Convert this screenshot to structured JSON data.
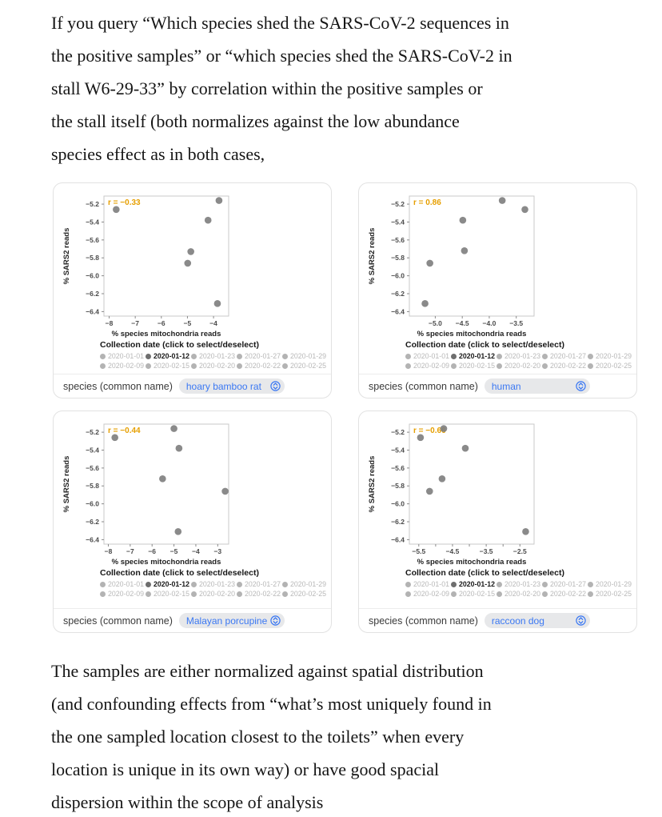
{
  "page": {
    "intro_lines": [
      "If you query “Which species shed the SARS-CoV-2 sequences in",
      "the positive samples” or “which species shed the SARS-CoV-2 in",
      "stall W6-29-33” by correlation within the positive samples or",
      "the stall itself (both normalizes against the low abundance",
      "species effect as in both cases,"
    ],
    "outro_lines": [
      "The samples are either normalized against spatial distribution",
      "(and confounding effects from “what’s most uniquely found in",
      "the one sampled location closest to the toilets” when every",
      "location is unique in its own way) or have good spacial",
      "dispersion within the scope of analysis"
    ]
  },
  "panel_shared": {
    "legend_title": "Collection date (click to select/deselect)",
    "dates": [
      "2020-01-01",
      "2020-01-12",
      "2020-01-23",
      "2020-01-27",
      "2020-01-29",
      "2020-02-09",
      "2020-02-15",
      "2020-02-20",
      "2020-02-22",
      "2020-02-25"
    ],
    "selected_date": "2020-01-12",
    "species_label": "species (common name)",
    "xlabel": "% species mitochondria reads",
    "ylabel": "% SARS2 reads",
    "y_tick_values": [
      -5.2,
      -5.4,
      -5.6,
      -5.8,
      -6.0,
      -6.2,
      -6.4
    ],
    "y_tick_labels": [
      "−5.2",
      "−5.4",
      "−5.6",
      "−5.8",
      "−6.0",
      "−6.2",
      "−6.4"
    ],
    "ylim": [
      -6.45,
      -5.11
    ],
    "colors": {
      "r_annotation": "#E69F00",
      "point": "#7d7d7d",
      "spine": "#c9c9c9",
      "species_text": "#3b78f3",
      "pill_bg": "#e7e8ea",
      "selected_date_text": "#1a1a1a",
      "unselected_date_text": "#b8b8b8"
    }
  },
  "chart_data": [
    {
      "type": "scatter",
      "species": "hoary bamboo rat",
      "r_label": "r = −0.33",
      "xlim": [
        -8.2,
        -3.42
      ],
      "x_tick_values": [
        -8,
        -7,
        -6,
        -5,
        -4
      ],
      "x_tick_labels": [
        "−8",
        "−7",
        "−6",
        "−5",
        "−4"
      ],
      "minor_x_ticks": [],
      "points": [
        [
          -7.73,
          -5.26
        ],
        [
          -3.79,
          -5.16
        ],
        [
          -4.21,
          -5.38
        ],
        [
          -4.87,
          -5.73
        ],
        [
          -4.99,
          -5.86
        ],
        [
          -3.85,
          -6.31
        ]
      ]
    },
    {
      "type": "scatter",
      "species": "human",
      "r_label": "r = 0.86",
      "xlim": [
        -5.48,
        -3.17
      ],
      "x_tick_values": [
        -5.0,
        -4.5,
        -4.0,
        -3.5
      ],
      "x_tick_labels": [
        "−5.0",
        "−4.5",
        "−4.0",
        "−3.5"
      ],
      "minor_x_ticks": [],
      "points": [
        [
          -3.76,
          -5.16
        ],
        [
          -3.34,
          -5.26
        ],
        [
          -4.49,
          -5.38
        ],
        [
          -4.46,
          -5.72
        ],
        [
          -5.1,
          -5.86
        ],
        [
          -5.19,
          -6.31
        ]
      ]
    },
    {
      "type": "scatter",
      "species": "Malayan porcupine",
      "r_label": "r = −0.44",
      "xlim": [
        -8.2,
        -2.5
      ],
      "x_tick_values": [
        -8,
        -7,
        -6,
        -5,
        -4,
        -3
      ],
      "x_tick_labels": [
        "−8",
        "−7",
        "−6",
        "−5",
        "−4",
        "−3"
      ],
      "minor_x_ticks": [],
      "points": [
        [
          -5.0,
          -5.16
        ],
        [
          -7.7,
          -5.26
        ],
        [
          -4.77,
          -5.38
        ],
        [
          -5.52,
          -5.72
        ],
        [
          -2.66,
          -5.86
        ],
        [
          -4.81,
          -6.31
        ]
      ]
    },
    {
      "type": "scatter",
      "species": "raccoon dog",
      "r_label": "r = −0.66",
      "xlim": [
        -5.78,
        -2.08
      ],
      "x_tick_values": [
        -5.5,
        -4.5,
        -3.5,
        -2.5
      ],
      "x_tick_labels": [
        "−5.5",
        "−4.5",
        "−3.5",
        "−2.5"
      ],
      "minor_x_ticks": [
        -5.0,
        -4.0,
        -3.0
      ],
      "points": [
        [
          -4.76,
          -5.16
        ],
        [
          -5.45,
          -5.26
        ],
        [
          -4.12,
          -5.38
        ],
        [
          -4.81,
          -5.72
        ],
        [
          -5.18,
          -5.86
        ],
        [
          -2.33,
          -6.31
        ]
      ]
    }
  ]
}
